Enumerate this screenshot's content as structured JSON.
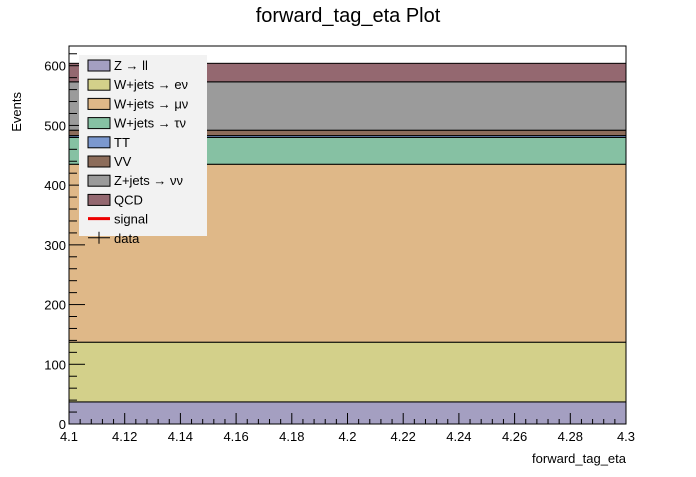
{
  "chart_data": {
    "type": "bar",
    "stacked": true,
    "title": "forward_tag_eta Plot",
    "xlabel": "forward_tag_eta",
    "ylabel": "Events",
    "xlim": [
      4.1,
      4.3
    ],
    "ylim": [
      0,
      633
    ],
    "x_ticks": [
      "4.1",
      "4.12",
      "4.14",
      "4.16",
      "4.18",
      "4.2",
      "4.22",
      "4.24",
      "4.26",
      "4.28",
      "4.3"
    ],
    "y_ticks": [
      "0",
      "100",
      "200",
      "300",
      "400",
      "500",
      "600"
    ],
    "bin": [
      4.1,
      4.3
    ],
    "series": [
      {
        "name": "Z → ll",
        "value": 37,
        "color": "#a49fc1"
      },
      {
        "name": "W+jets → eν",
        "value": 100,
        "color": "#d3d08a"
      },
      {
        "name": "W+jets → μν",
        "value": 298,
        "color": "#dfb888"
      },
      {
        "name": "W+jets → τν",
        "value": 45,
        "color": "#86c1a3"
      },
      {
        "name": "TT",
        "value": 3,
        "color": "#7b98cf"
      },
      {
        "name": "VV",
        "value": 9,
        "color": "#8c6c5a"
      },
      {
        "name": "Z+jets → νν",
        "value": 81,
        "color": "#9b9b9b"
      },
      {
        "name": "QCD",
        "value": 31,
        "color": "#946870"
      }
    ],
    "legend": {
      "position": "top-left",
      "extra": [
        {
          "name": "signal",
          "color": "#ee0000",
          "style": "line"
        },
        {
          "name": "data",
          "color": "#000000",
          "style": "marker"
        }
      ]
    },
    "grid": false
  }
}
